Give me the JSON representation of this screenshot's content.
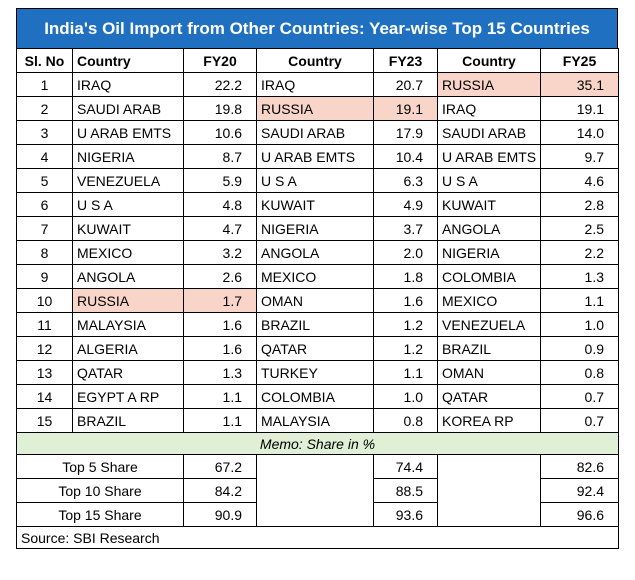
{
  "header": {
    "title": "India's Oil Import from Other Countries: Year-wise Top 15 Countries"
  },
  "table": {
    "columns": [
      "Sl. No",
      "Country",
      "FY20",
      "Country",
      "FY23",
      "Country",
      "FY25"
    ],
    "rows": [
      [
        "1",
        "IRAQ",
        "22.2",
        "IRAQ",
        "20.7",
        "RUSSIA",
        "35.1"
      ],
      [
        "2",
        "SAUDI ARAB",
        "19.8",
        "RUSSIA",
        "19.1",
        "IRAQ",
        "19.1"
      ],
      [
        "3",
        "U ARAB EMTS",
        "10.6",
        "SAUDI ARAB",
        "17.9",
        "SAUDI ARAB",
        "14.0"
      ],
      [
        "4",
        "NIGERIA",
        "8.7",
        "U ARAB EMTS",
        "10.4",
        "U ARAB EMTS",
        "9.7"
      ],
      [
        "5",
        "VENEZUELA",
        "5.9",
        "U S A",
        "6.3",
        "U S A",
        "4.6"
      ],
      [
        "6",
        "U S A",
        "4.8",
        "KUWAIT",
        "4.9",
        "KUWAIT",
        "2.8"
      ],
      [
        "7",
        "KUWAIT",
        "4.7",
        "NIGERIA",
        "3.7",
        "ANGOLA",
        "2.5"
      ],
      [
        "8",
        "MEXICO",
        "3.2",
        "ANGOLA",
        "2.0",
        "NIGERIA",
        "2.2"
      ],
      [
        "9",
        "ANGOLA",
        "2.6",
        "MEXICO",
        "1.8",
        "COLOMBIA",
        "1.3"
      ],
      [
        "10",
        "RUSSIA",
        "1.7",
        "OMAN",
        "1.6",
        "MEXICO",
        "1.1"
      ],
      [
        "11",
        "MALAYSIA",
        "1.6",
        "BRAZIL",
        "1.2",
        "VENEZUELA",
        "1.0"
      ],
      [
        "12",
        "ALGERIA",
        "1.6",
        "QATAR",
        "1.2",
        "BRAZIL",
        "0.9"
      ],
      [
        "13",
        "QATAR",
        "1.3",
        "TURKEY",
        "1.1",
        "OMAN",
        "0.8"
      ],
      [
        "14",
        "EGYPT A RP",
        "1.1",
        "COLOMBIA",
        "1.0",
        "QATAR",
        "0.7"
      ],
      [
        "15",
        "BRAZIL",
        "1.1",
        "MALAYSIA",
        "0.8",
        "KOREA RP",
        "0.7"
      ]
    ],
    "memo": "Memo: Share in %",
    "shares": [
      {
        "label": "Top 5 Share",
        "values": [
          "67.2",
          "74.4",
          "82.6"
        ]
      },
      {
        "label": "Top 10 Share",
        "values": [
          "84.2",
          "88.5",
          "92.4"
        ]
      },
      {
        "label": "Top 15 Share",
        "values": [
          "90.9",
          "93.6",
          "96.6"
        ]
      }
    ]
  },
  "footer": {
    "source": "Source: SBI Research"
  }
}
